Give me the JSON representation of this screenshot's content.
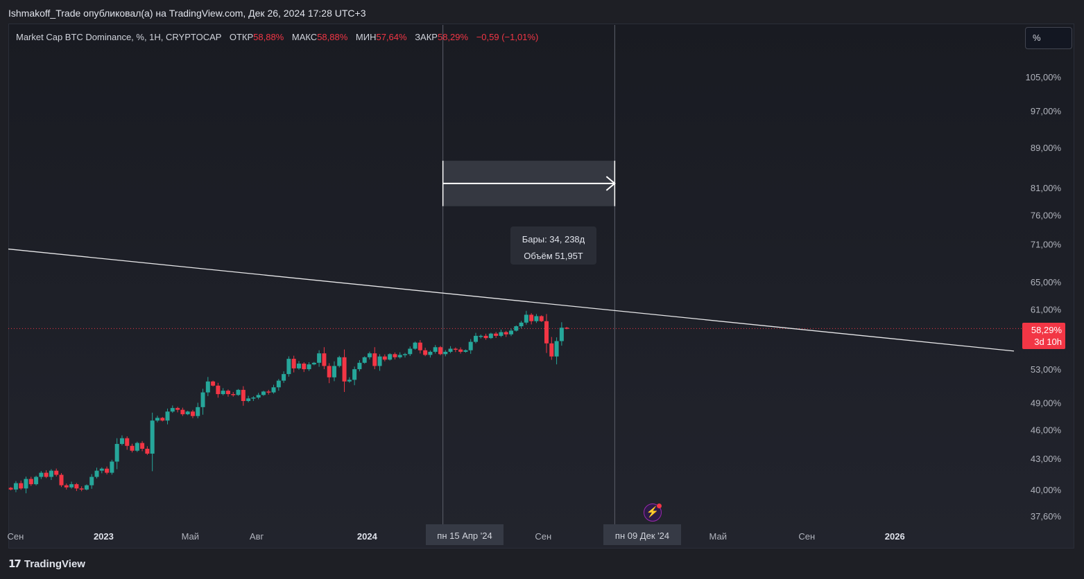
{
  "header": {
    "publisher": "Ishmakoff_Trade опубликовал(а) на TradingView.com, Дек 26, 2024 17:28 UTC+3"
  },
  "legend": {
    "symbol": "Market Cap BTC Dominance, %, 1H, CRYPTOCAP",
    "open_label": "ОТКР",
    "open_value": "58,88%",
    "high_label": "МАКС",
    "high_value": "58,88%",
    "low_label": "МИН",
    "low_value": "57,64%",
    "close_label": "ЗАКР",
    "close_value": "58,29%",
    "change": "−0,59 (−1,01%)"
  },
  "scale_button": "%",
  "measure": {
    "bars": "Бары: 34, 238д",
    "volume": "Объём 51,95T"
  },
  "price_tag": {
    "value": "58,29%",
    "countdown": "3d 10h"
  },
  "cursor_labels": {
    "left": "пн 15 Апр '24",
    "right": "пн 09 Дек '24"
  },
  "footer": {
    "brand": "TradingView",
    "mark": "17"
  },
  "colors": {
    "up": "#26a69a",
    "down": "#f23645",
    "background": "#1e1f25",
    "text": "#d1d4dc"
  },
  "icons": {
    "flash": "lightning-icon"
  },
  "chart_data": {
    "type": "candlestick",
    "title": "Market Cap BTC Dominance, %, 1H, CRYPTOCAP",
    "y_scale": "log",
    "ylim": [
      37.6,
      105.0
    ],
    "y_ticks": [
      "105,00%",
      "97,00%",
      "89,00%",
      "81,00%",
      "76,00%",
      "71,00%",
      "65,00%",
      "61,00%",
      "53,00%",
      "49,00%",
      "46,00%",
      "43,00%",
      "40,00%",
      "37,60%"
    ],
    "y_tick_values": [
      105,
      97,
      89,
      81,
      76,
      71,
      65,
      61,
      53,
      49,
      46,
      43,
      40,
      37.6
    ],
    "x_ticks": [
      "Сен",
      "2023",
      "Май",
      "Авг",
      "2024",
      "Сен",
      "Май",
      "Сен",
      "2026"
    ],
    "x_tick_dates": [
      "2022-09-01",
      "2023-01-01",
      "2023-05-01",
      "2023-08-01",
      "2024-01-01",
      "2024-09-01",
      "2025-05-01",
      "2025-09-01",
      "2026-01-01"
    ],
    "x_range": [
      "2022-08-22",
      "2026-06-15"
    ],
    "interval": "week",
    "first_candle_date": "2022-08-22",
    "closes": [
      40.0,
      40.6,
      40.1,
      41.0,
      40.5,
      41.2,
      41.6,
      41.2,
      41.8,
      41.4,
      40.4,
      40.2,
      40.5,
      40.1,
      40.0,
      40.4,
      41.2,
      41.8,
      42.0,
      41.6,
      42.7,
      44.5,
      45.1,
      44.3,
      43.8,
      44.6,
      44.0,
      43.5,
      47.0,
      47.3,
      47.0,
      48.0,
      48.4,
      48.2,
      47.7,
      48.0,
      47.5,
      48.5,
      50.2,
      51.5,
      51.0,
      50.0,
      50.4,
      50.0,
      49.9,
      50.5,
      49.2,
      49.5,
      49.6,
      49.9,
      50.3,
      50.2,
      50.8,
      51.6,
      52.4,
      54.3,
      53.1,
      53.7,
      53.0,
      53.6,
      53.8,
      55.0,
      53.4,
      52.0,
      53.4,
      54.5,
      51.5,
      51.7,
      53.0,
      53.8,
      54.5,
      55.0,
      53.4,
      54.6,
      54.2,
      54.9,
      54.5,
      54.8,
      54.9,
      55.6,
      56.4,
      55.4,
      54.8,
      55.2,
      55.8,
      54.9,
      55.2,
      55.6,
      55.5,
      55.2,
      55.4,
      56.5,
      57.3,
      57.3,
      57.0,
      57.6,
      57.3,
      57.8,
      57.5,
      58.0,
      58.6,
      59.1,
      60.2,
      59.3,
      60.0,
      59.3,
      56.3,
      54.6,
      56.6,
      58.4,
      58.3
    ],
    "trendline": [
      {
        "date": "2022-08-22",
        "value": 70.2
      },
      {
        "date": "2026-06-15",
        "value": 55.3
      }
    ],
    "last_value": 58.29,
    "measure_range": {
      "start": "2024-04-15",
      "end": "2024-12-09",
      "bars": 34,
      "days": 238,
      "volume": "51,95T"
    }
  }
}
